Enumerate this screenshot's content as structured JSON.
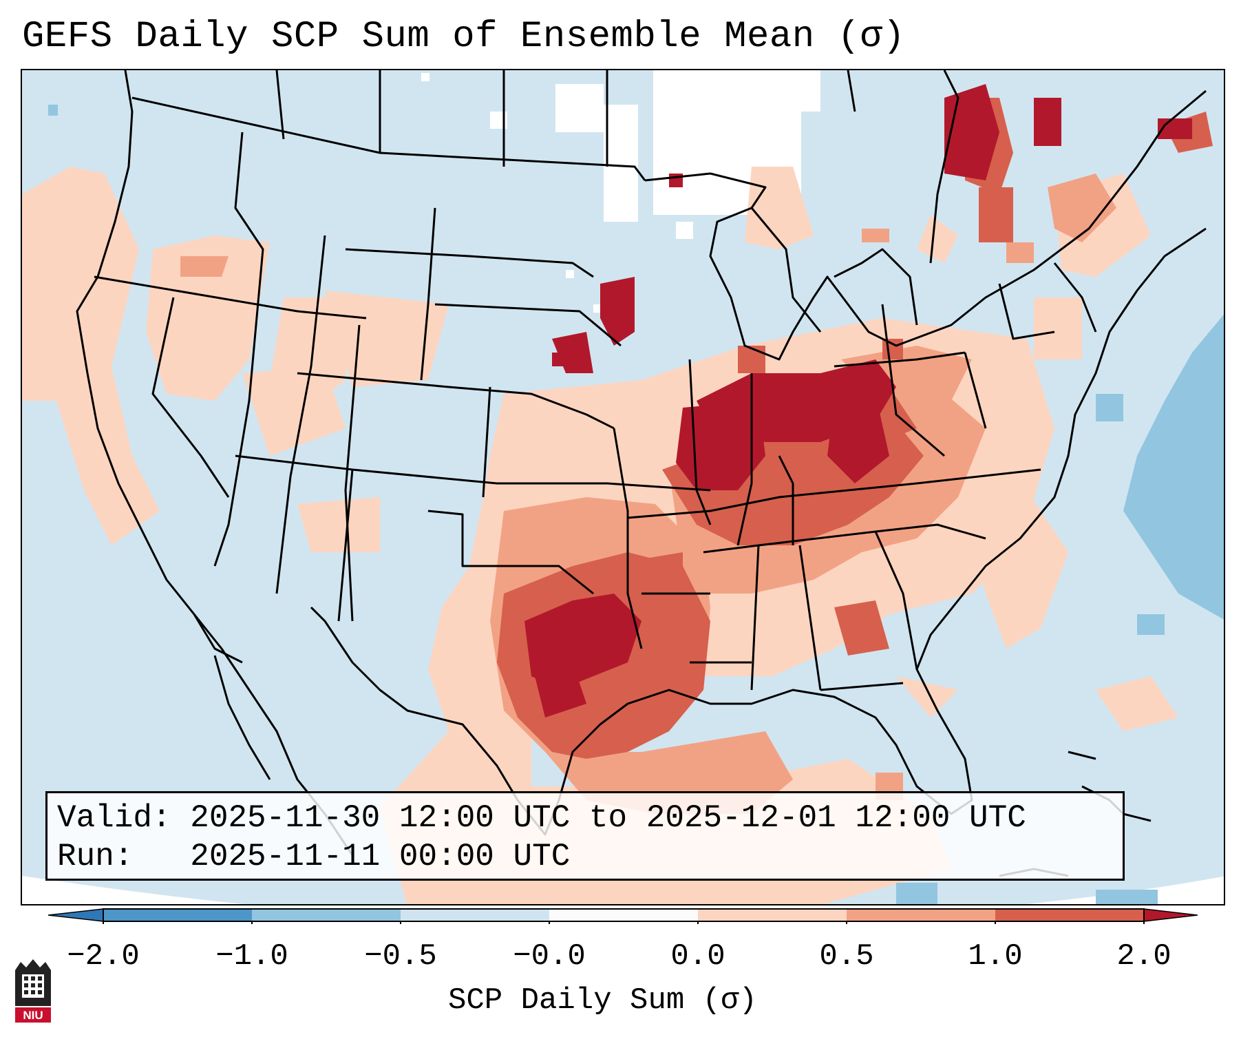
{
  "title": "GEFS Daily SCP Sum of Ensemble Mean (σ)",
  "info": {
    "valid_line": "Valid: 2025-11-30 12:00 UTC to 2025-12-01 12:00 UTC",
    "run_line": "Run:   2025-11-11 00:00 UTC"
  },
  "colorbar": {
    "label": "SCP Daily Sum (σ)",
    "ticks": [
      "−2.0",
      "−1.0",
      "−0.5",
      "−0.0",
      "0.0",
      "0.5",
      "1.0",
      "2.0"
    ],
    "bins": [
      {
        "color": "#2f78b6"
      },
      {
        "color": "#4d96c8"
      },
      {
        "color": "#92c5e0"
      },
      {
        "color": "#d0e4f0"
      },
      {
        "color": "#fbfbfb"
      },
      {
        "color": "#fcd5c0"
      },
      {
        "color": "#f2a284"
      },
      {
        "color": "#d6604d"
      },
      {
        "color": "#b2182b"
      }
    ]
  },
  "colors": {
    "background": "#d1e5f0",
    "no_data": "#ffffff",
    "light_red": "#fcd5c0",
    "mid_red": "#f2a284",
    "strong_red": "#d6604d",
    "dark_red": "#b2182b",
    "light_blue": "#92c5e0"
  },
  "logo": {
    "text": "NIU",
    "icon": "niu-logo-icon"
  }
}
